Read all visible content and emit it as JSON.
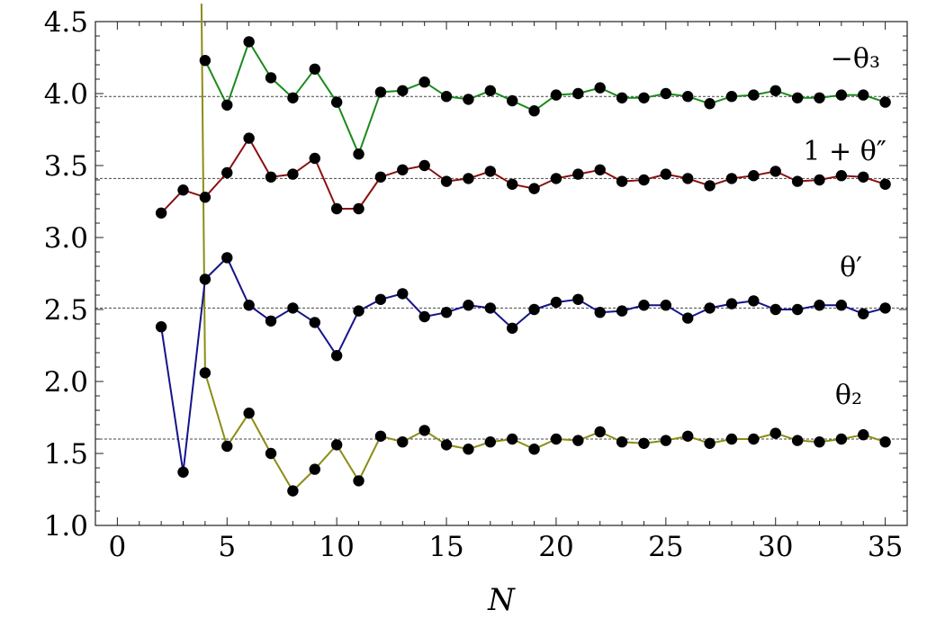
{
  "chart_data": {
    "type": "line",
    "xlabel": "N",
    "ylabel": "",
    "xlim": [
      -1,
      36
    ],
    "ylim": [
      1.0,
      4.5
    ],
    "x_ticks": [
      "0",
      "5",
      "10",
      "15",
      "20",
      "25",
      "30",
      "35"
    ],
    "y_ticks": [
      "1.0",
      "1.5",
      "2.0",
      "2.5",
      "3.0",
      "3.5",
      "4.0",
      "4.5"
    ],
    "reference_lines": [
      3.98,
      3.41,
      2.51,
      1.6
    ],
    "series": [
      {
        "name": "−θ₃",
        "color": "#1a8a1a",
        "x": [
          4,
          5,
          6,
          7,
          8,
          9,
          10,
          11,
          12,
          13,
          14,
          15,
          16,
          17,
          18,
          19,
          20,
          21,
          22,
          23,
          24,
          25,
          26,
          27,
          28,
          29,
          30,
          31,
          32,
          33,
          34,
          35
        ],
        "y": [
          4.23,
          3.92,
          4.36,
          4.11,
          3.97,
          4.17,
          3.94,
          3.58,
          4.01,
          4.02,
          4.08,
          3.98,
          3.96,
          4.02,
          3.95,
          3.88,
          3.99,
          4.0,
          4.04,
          3.97,
          3.97,
          4.0,
          3.98,
          3.93,
          3.98,
          3.99,
          4.02,
          3.97,
          3.97,
          3.99,
          3.99,
          3.94
        ]
      },
      {
        "name": "1 + θ″",
        "color": "#8b1010",
        "x": [
          2,
          3,
          4,
          5,
          6,
          7,
          8,
          9,
          10,
          11,
          12,
          13,
          14,
          15,
          16,
          17,
          18,
          19,
          20,
          21,
          22,
          23,
          24,
          25,
          26,
          27,
          28,
          29,
          30,
          31,
          32,
          33,
          34,
          35
        ],
        "y": [
          3.17,
          3.33,
          3.28,
          3.45,
          3.69,
          3.42,
          3.44,
          3.55,
          3.2,
          3.2,
          3.42,
          3.47,
          3.5,
          3.39,
          3.41,
          3.46,
          3.37,
          3.34,
          3.41,
          3.44,
          3.47,
          3.39,
          3.4,
          3.44,
          3.41,
          3.36,
          3.41,
          3.43,
          3.46,
          3.39,
          3.4,
          3.43,
          3.42,
          3.37
        ]
      },
      {
        "name": "θ′",
        "color": "#14148a",
        "x": [
          2,
          3,
          4,
          5,
          6,
          7,
          8,
          9,
          10,
          11,
          12,
          13,
          14,
          15,
          16,
          17,
          18,
          19,
          20,
          21,
          22,
          23,
          24,
          25,
          26,
          27,
          28,
          29,
          30,
          31,
          32,
          33,
          34,
          35
        ],
        "y": [
          2.38,
          1.37,
          2.71,
          2.86,
          2.53,
          2.42,
          2.51,
          2.41,
          2.18,
          2.49,
          2.57,
          2.61,
          2.45,
          2.48,
          2.53,
          2.51,
          2.37,
          2.5,
          2.55,
          2.57,
          2.48,
          2.49,
          2.53,
          2.53,
          2.44,
          2.51,
          2.54,
          2.56,
          2.5,
          2.5,
          2.53,
          2.53,
          2.47,
          2.51
        ]
      },
      {
        "name": "θ₂",
        "color": "#8c8c14",
        "x": [
          4,
          5,
          6,
          7,
          8,
          9,
          10,
          11,
          12,
          13,
          14,
          15,
          16,
          17,
          18,
          19,
          20,
          21,
          22,
          23,
          24,
          25,
          26,
          27,
          28,
          29,
          30,
          31,
          32,
          33,
          34,
          35
        ],
        "y": [
          2.06,
          1.55,
          1.78,
          1.5,
          1.24,
          1.39,
          1.56,
          1.31,
          1.62,
          1.58,
          1.66,
          1.56,
          1.53,
          1.58,
          1.6,
          1.53,
          1.6,
          1.59,
          1.65,
          1.58,
          1.57,
          1.59,
          1.62,
          1.57,
          1.6,
          1.6,
          1.64,
          1.59,
          1.58,
          1.6,
          1.63,
          1.58
        ]
      }
    ]
  }
}
